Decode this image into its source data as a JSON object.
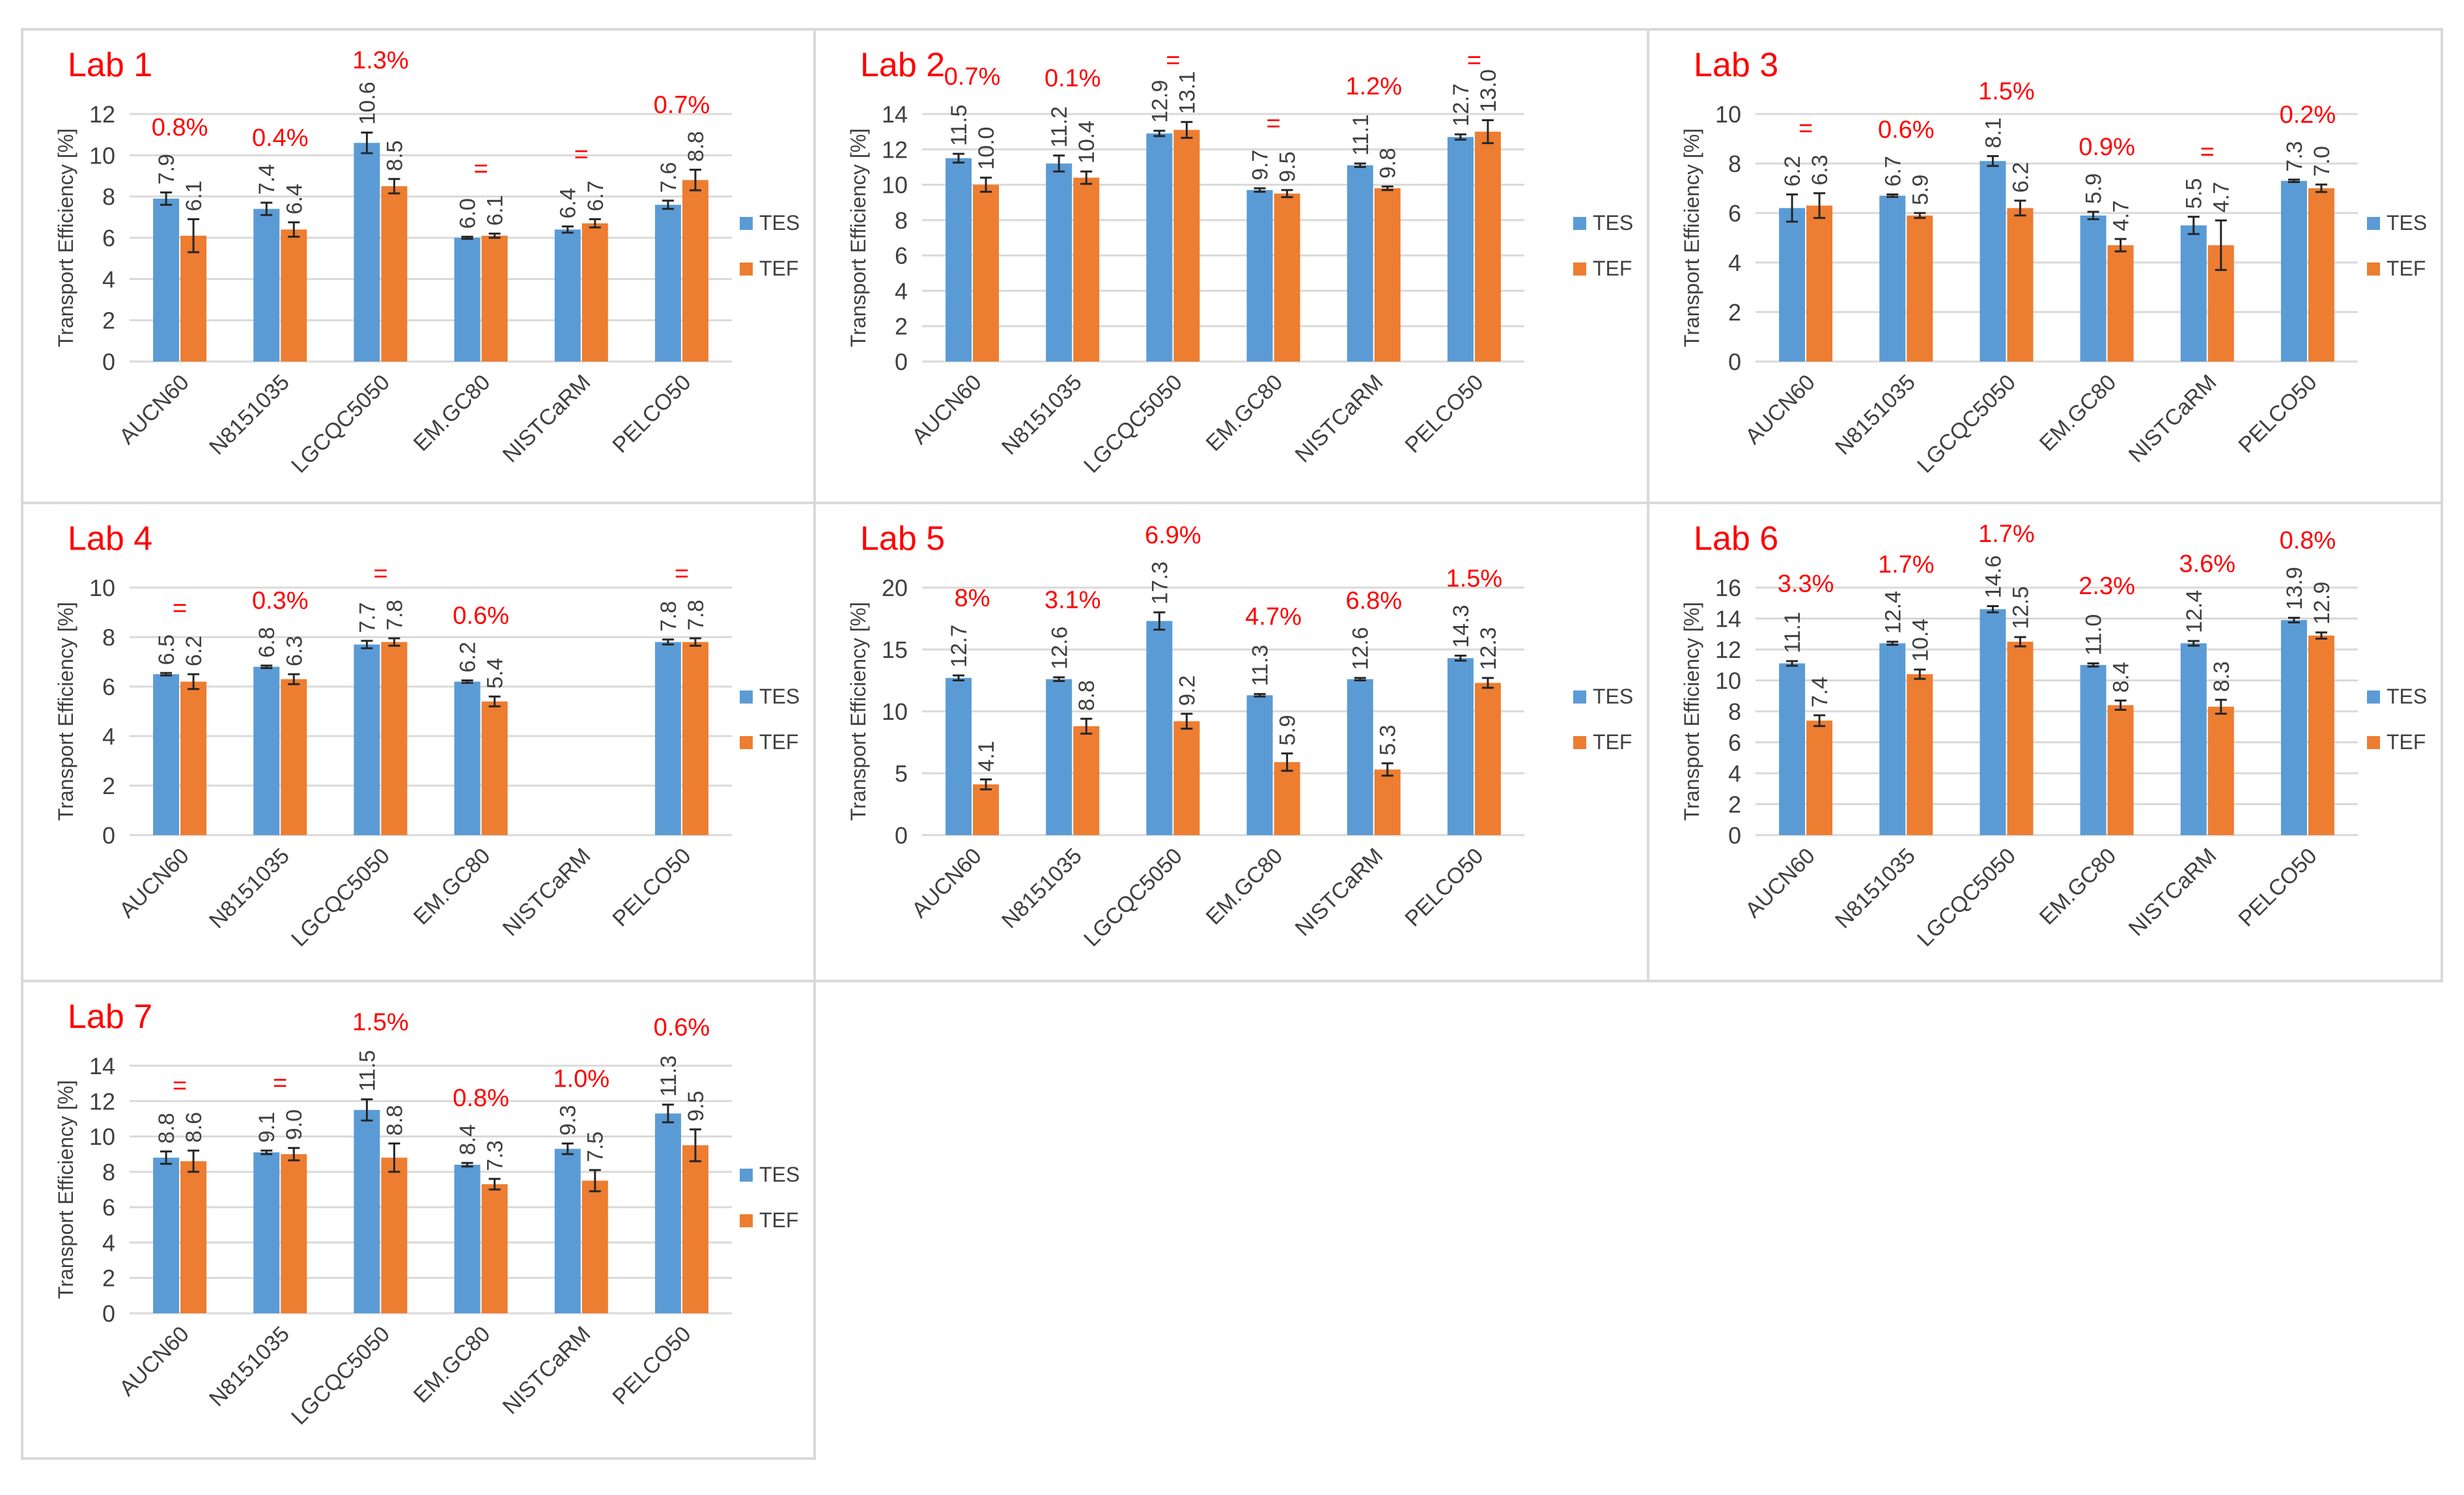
{
  "figure": {
    "colors": {
      "tes": "#5B9BD5",
      "tef": "#ED7D31",
      "annotation": "#FF0000",
      "text": "#404040",
      "grid": "#D9D9D9",
      "border": "#D9D9D9",
      "error": "#262626"
    },
    "legend": {
      "tes": "TES",
      "tef": "TEF"
    }
  },
  "chart_data": [
    {
      "type": "bar",
      "title": "Lab 1",
      "ylabel": "Transport Efficiency [%]",
      "categories": [
        "AUCN60",
        "N8151035",
        "LGCQC5050",
        "EM.GC80",
        "NISTCaRM",
        "PELCO50"
      ],
      "ylim": [
        0,
        12
      ],
      "yticks": [
        "0",
        "2",
        "4",
        "6",
        "8",
        "10",
        "12"
      ],
      "series": [
        {
          "name": "TES",
          "values": [
            7.9,
            7.4,
            10.6,
            6.0,
            6.4,
            7.6
          ],
          "labels": [
            "7.9",
            "7.4",
            "10.6",
            "6.0",
            "6.4",
            "7.6"
          ],
          "errors": [
            0.3,
            0.3,
            0.5,
            0.05,
            0.15,
            0.2
          ]
        },
        {
          "name": "TEF",
          "values": [
            6.1,
            6.4,
            8.5,
            6.1,
            6.7,
            8.8
          ],
          "labels": [
            "6.1",
            "6.4",
            "8.5",
            "6.1",
            "6.7",
            "8.8"
          ],
          "errors": [
            0.8,
            0.35,
            0.35,
            0.1,
            0.2,
            0.5
          ]
        }
      ],
      "annotations": [
        "0.8%",
        "0.4%",
        "1.3%",
        "=",
        "=",
        "0.7%"
      ]
    },
    {
      "type": "bar",
      "title": "Lab 2",
      "ylabel": "Transport Efficiency [%]",
      "categories": [
        "AUCN60",
        "N8151035",
        "LGCQC5050",
        "EM.GC80",
        "NISTCaRM",
        "PELCO50"
      ],
      "ylim": [
        0,
        14
      ],
      "yticks": [
        "0",
        "2",
        "4",
        "6",
        "8",
        "10",
        "12",
        "14"
      ],
      "series": [
        {
          "name": "TES",
          "values": [
            11.5,
            11.2,
            12.9,
            9.7,
            11.1,
            12.7
          ],
          "labels": [
            "11.5",
            "11.2",
            "12.9",
            "9.7",
            "11.1",
            "12.7"
          ],
          "errors": [
            0.25,
            0.45,
            0.15,
            0.1,
            0.1,
            0.15
          ]
        },
        {
          "name": "TEF",
          "values": [
            10.0,
            10.4,
            13.1,
            9.5,
            9.8,
            13.0
          ],
          "labels": [
            "10.0",
            "10.4",
            "13.1",
            "9.5",
            "9.8",
            "13.0"
          ],
          "errors": [
            0.4,
            0.35,
            0.45,
            0.2,
            0.1,
            0.65
          ]
        }
      ],
      "annotations": [
        "0.7%",
        "0.1%",
        "=",
        "=",
        "1.2%",
        "="
      ]
    },
    {
      "type": "bar",
      "title": "Lab 3",
      "ylabel": "Transport Efficiency [%]",
      "categories": [
        "AUCN60",
        "N8151035",
        "LGCQC5050",
        "EM.GC80",
        "NISTCaRM",
        "PELCO50"
      ],
      "ylim": [
        0,
        10
      ],
      "yticks": [
        "0",
        "2",
        "4",
        "6",
        "8",
        "10"
      ],
      "series": [
        {
          "name": "TES",
          "values": [
            6.2,
            6.7,
            8.1,
            5.9,
            5.5,
            7.3
          ],
          "labels": [
            "6.2",
            "6.7",
            "8.1",
            "5.9",
            "5.5",
            "7.3"
          ],
          "errors": [
            0.55,
            0.05,
            0.2,
            0.15,
            0.35,
            0.05
          ]
        },
        {
          "name": "TEF",
          "values": [
            6.3,
            5.9,
            6.2,
            4.7,
            4.7,
            7.0
          ],
          "labels": [
            "6.3",
            "5.9",
            "6.2",
            "4.7",
            "4.7",
            "7.0"
          ],
          "errors": [
            0.5,
            0.1,
            0.3,
            0.25,
            1.0,
            0.15
          ]
        }
      ],
      "annotations": [
        "=",
        "0.6%",
        "1.5%",
        "0.9%",
        "=",
        "0.2%"
      ]
    },
    {
      "type": "bar",
      "title": "Lab 4",
      "ylabel": "Transport Efficiency [%]",
      "categories": [
        "AUCN60",
        "N8151035",
        "LGCQC5050",
        "EM.GC80",
        "NISTCaRM",
        "PELCO50"
      ],
      "ylim": [
        0,
        10
      ],
      "yticks": [
        "0",
        "2",
        "4",
        "6",
        "8",
        "10"
      ],
      "series": [
        {
          "name": "TES",
          "values": [
            6.5,
            6.8,
            7.7,
            6.2,
            null,
            7.8
          ],
          "labels": [
            "6.5",
            "6.8",
            "7.7",
            "6.2",
            "",
            "7.8"
          ],
          "errors": [
            0.05,
            0.05,
            0.15,
            0.05,
            0,
            0.1
          ]
        },
        {
          "name": "TEF",
          "values": [
            6.2,
            6.3,
            7.8,
            5.4,
            null,
            7.8
          ],
          "labels": [
            "6.2",
            "6.3",
            "7.8",
            "5.4",
            "",
            "7.8"
          ],
          "errors": [
            0.3,
            0.2,
            0.15,
            0.2,
            0,
            0.15
          ]
        }
      ],
      "annotations": [
        "=",
        "0.3%",
        "=",
        "0.6%",
        "",
        "="
      ]
    },
    {
      "type": "bar",
      "title": "Lab 5",
      "ylabel": "Transport Efficiency [%]",
      "categories": [
        "AUCN60",
        "N8151035",
        "LGCQC5050",
        "EM.GC80",
        "NISTCaRM",
        "PELCO50"
      ],
      "ylim": [
        0,
        20
      ],
      "yticks": [
        "0",
        "5",
        "10",
        "15",
        "20"
      ],
      "series": [
        {
          "name": "TES",
          "values": [
            12.7,
            12.6,
            17.3,
            11.3,
            12.6,
            14.3
          ],
          "labels": [
            "12.7",
            "12.6",
            "17.3",
            "11.3",
            "12.6",
            "14.3"
          ],
          "errors": [
            0.2,
            0.15,
            0.7,
            0.1,
            0.1,
            0.2
          ]
        },
        {
          "name": "TEF",
          "values": [
            4.1,
            8.8,
            9.2,
            5.9,
            5.3,
            12.3
          ],
          "labels": [
            "4.1",
            "8.8",
            "9.2",
            "5.9",
            "5.3",
            "12.3"
          ],
          "errors": [
            0.4,
            0.6,
            0.6,
            0.7,
            0.5,
            0.4
          ]
        }
      ],
      "annotations": [
        "8%",
        "3.1%",
        "6.9%",
        "4.7%",
        "6.8%",
        "1.5%"
      ]
    },
    {
      "type": "bar",
      "title": "Lab 6",
      "ylabel": "Transport Efficiency [%]",
      "categories": [
        "AUCN60",
        "N8151035",
        "LGCQC5050",
        "EM.GC80",
        "NISTCaRM",
        "PELCO50"
      ],
      "ylim": [
        0,
        16
      ],
      "yticks": [
        "0",
        "2",
        "4",
        "6",
        "8",
        "10",
        "12",
        "14",
        "16"
      ],
      "series": [
        {
          "name": "TES",
          "values": [
            11.1,
            12.4,
            14.6,
            11.0,
            12.4,
            13.9
          ],
          "labels": [
            "11.1",
            "12.4",
            "14.6",
            "11.0",
            "12.4",
            "13.9"
          ],
          "errors": [
            0.15,
            0.1,
            0.2,
            0.1,
            0.15,
            0.15
          ]
        },
        {
          "name": "TEF",
          "values": [
            7.4,
            10.4,
            12.5,
            8.4,
            8.3,
            12.9
          ],
          "labels": [
            "7.4",
            "10.4",
            "12.5",
            "8.4",
            "8.3",
            "12.9"
          ],
          "errors": [
            0.35,
            0.3,
            0.3,
            0.3,
            0.45,
            0.2
          ]
        }
      ],
      "annotations": [
        "3.3%",
        "1.7%",
        "1.7%",
        "2.3%",
        "3.6%",
        "0.8%"
      ]
    },
    {
      "type": "bar",
      "title": "Lab 7",
      "ylabel": "Transport Efficiency [%]",
      "categories": [
        "AUCN60",
        "N8151035",
        "LGCQC5050",
        "EM.GC80",
        "NISTCaRM",
        "PELCO50"
      ],
      "ylim": [
        0,
        14
      ],
      "yticks": [
        "0",
        "2",
        "4",
        "6",
        "8",
        "10",
        "12",
        "14"
      ],
      "series": [
        {
          "name": "TES",
          "values": [
            8.8,
            9.1,
            11.5,
            8.4,
            9.3,
            11.3
          ],
          "labels": [
            "8.8",
            "9.1",
            "11.5",
            "8.4",
            "9.3",
            "11.3"
          ],
          "errors": [
            0.35,
            0.1,
            0.6,
            0.1,
            0.3,
            0.5
          ]
        },
        {
          "name": "TEF",
          "values": [
            8.6,
            9.0,
            8.8,
            7.3,
            7.5,
            9.5
          ],
          "labels": [
            "8.6",
            "9.0",
            "8.8",
            "7.3",
            "7.5",
            "9.5"
          ],
          "errors": [
            0.6,
            0.35,
            0.8,
            0.3,
            0.6,
            0.9
          ]
        }
      ],
      "annotations": [
        "=",
        "=",
        "1.5%",
        "0.8%",
        "1.0%",
        "0.6%"
      ]
    }
  ]
}
